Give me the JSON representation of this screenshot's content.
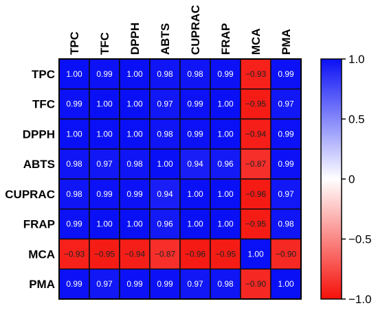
{
  "chart_data": {
    "type": "heatmap",
    "rows": [
      "TPC",
      "TFC",
      "DPPH",
      "ABTS",
      "CUPRAC",
      "FRAP",
      "MCA",
      "PMA"
    ],
    "columns": [
      "TPC",
      "TFC",
      "DPPH",
      "ABTS",
      "CUPRAC",
      "FRAP",
      "MCA",
      "PMA"
    ],
    "values": [
      [
        1.0,
        0.99,
        1.0,
        0.98,
        0.98,
        0.99,
        -0.93,
        0.99
      ],
      [
        0.99,
        1.0,
        1.0,
        0.97,
        0.99,
        1.0,
        -0.95,
        0.97
      ],
      [
        1.0,
        1.0,
        1.0,
        0.98,
        0.99,
        1.0,
        -0.94,
        0.99
      ],
      [
        0.98,
        0.97,
        0.98,
        1.0,
        0.94,
        0.96,
        -0.87,
        0.99
      ],
      [
        0.98,
        0.99,
        0.99,
        0.94,
        1.0,
        1.0,
        -0.96,
        0.97
      ],
      [
        0.99,
        1.0,
        1.0,
        0.96,
        1.0,
        1.0,
        -0.95,
        0.98
      ],
      [
        -0.93,
        -0.95,
        -0.94,
        -0.87,
        -0.96,
        -0.95,
        1.0,
        -0.9
      ],
      [
        0.99,
        0.97,
        0.99,
        0.99,
        0.97,
        0.98,
        -0.9,
        1.0
      ]
    ],
    "cell_labels": [
      [
        "1.00",
        "0.99",
        "1.00",
        "0.98",
        "0.98",
        "0.99",
        "−0.93",
        "0.99"
      ],
      [
        "0.99",
        "1.00",
        "1.00",
        "0.97",
        "0.99",
        "1.00",
        "−0.95",
        "0.97"
      ],
      [
        "1.00",
        "1.00",
        "1.00",
        "0.98",
        "0.99",
        "1.00",
        "−0.94",
        "0.99"
      ],
      [
        "0.98",
        "0.97",
        "0.98",
        "1.00",
        "0.94",
        "0.96",
        "−0.87",
        "0.99"
      ],
      [
        "0.98",
        "0.99",
        "0.99",
        "0.94",
        "1.00",
        "1.00",
        "−0.96",
        "0.97"
      ],
      [
        "0.99",
        "1.00",
        "1.00",
        "0.96",
        "1.00",
        "1.00",
        "−0.95",
        "0.98"
      ],
      [
        "−0.93",
        "−0.95",
        "−0.94",
        "−0.87",
        "−0.96",
        "−0.95",
        "1.00",
        "−0.90"
      ],
      [
        "0.99",
        "0.97",
        "0.99",
        "0.99",
        "0.97",
        "0.98",
        "−0.90",
        "1.00"
      ]
    ],
    "colorbar": {
      "range": [
        -1.0,
        1.0
      ],
      "ticks": [
        1.0,
        0.5,
        0,
        -0.5,
        -1.0
      ],
      "tick_labels": [
        "1.0",
        "0.5",
        "0",
        "−0.5",
        "−1.0"
      ]
    },
    "colors": {
      "positive": "#0a10f5",
      "zero": "#ffffff",
      "negative": "#f5100a"
    },
    "legend_position": "right"
  }
}
